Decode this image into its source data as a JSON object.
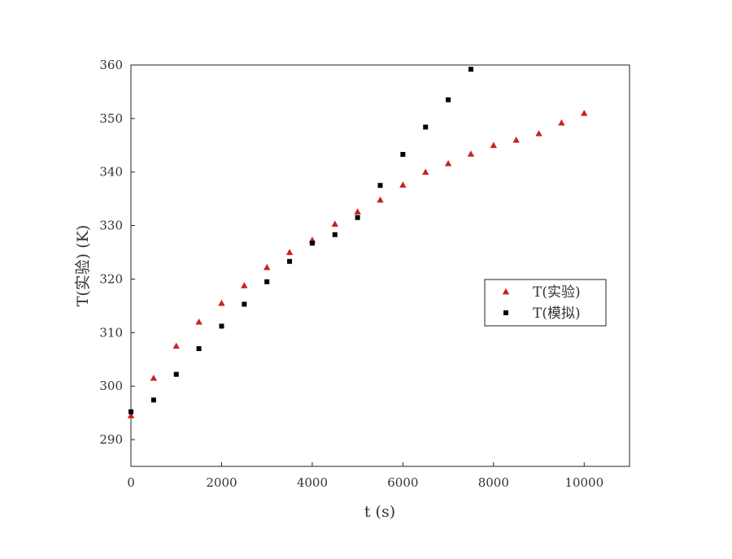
{
  "chart_data": {
    "type": "scatter",
    "xlabel": "t (s)",
    "ylabel": "T(实验) (K)",
    "xlim": [
      0,
      11000
    ],
    "ylim": [
      285,
      360
    ],
    "xticks": [
      0,
      2000,
      4000,
      6000,
      8000,
      10000
    ],
    "yticks": [
      290,
      300,
      310,
      320,
      330,
      340,
      350,
      360
    ],
    "grid": false,
    "legend_position": "center-right",
    "series": [
      {
        "name": "T(实验)",
        "marker": "triangle",
        "color": "#cc2020",
        "x": [
          0,
          500,
          1000,
          1500,
          2000,
          2500,
          3000,
          3500,
          4000,
          4500,
          5000,
          5500,
          6000,
          6500,
          7000,
          7500,
          8000,
          8500,
          9000,
          9500,
          10000
        ],
        "y": [
          294.5,
          301.5,
          307.5,
          312,
          315.5,
          318.8,
          322.2,
          325,
          327.3,
          330.3,
          332.6,
          334.8,
          337.6,
          340,
          341.6,
          343.4,
          345,
          346,
          347.2,
          349.2,
          351
        ]
      },
      {
        "name": "T(模拟)",
        "marker": "square",
        "color": "#000000",
        "x": [
          0,
          500,
          1000,
          1500,
          2000,
          2500,
          3000,
          3500,
          4000,
          4500,
          5000,
          5500,
          6000,
          6500,
          7000,
          7500
        ],
        "y": [
          295.2,
          297.4,
          302.2,
          307,
          311.2,
          315.3,
          319.5,
          323.3,
          326.7,
          328.3,
          331.5,
          337.5,
          343.3,
          348.4,
          353.5,
          359.2
        ]
      }
    ]
  }
}
